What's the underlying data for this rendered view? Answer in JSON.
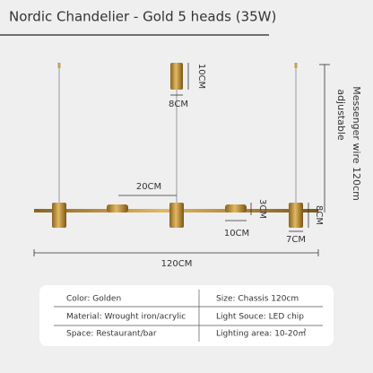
{
  "header": {
    "title": "Nordic Chandelier - Gold 5 heads (35W)"
  },
  "dimensions": {
    "canopy_height": "10CM",
    "canopy_width": "8CM",
    "wire": [
      "Messenger wire 120cm",
      "adjustable"
    ],
    "spacing": "20CM",
    "disk_height": "3CM",
    "head_height": "8CM",
    "disk_width": "10CM",
    "head_width": "7CM",
    "total_length": "120CM"
  },
  "table": {
    "rows": [
      [
        "Color: Golden",
        "Size: Chassis 120cm"
      ],
      [
        "Material: Wrought iron/acrylic",
        "Light Souce:  LED chip"
      ],
      [
        "Space:  Restaurant/bar",
        "Lighting area: 10-20㎡"
      ]
    ]
  }
}
